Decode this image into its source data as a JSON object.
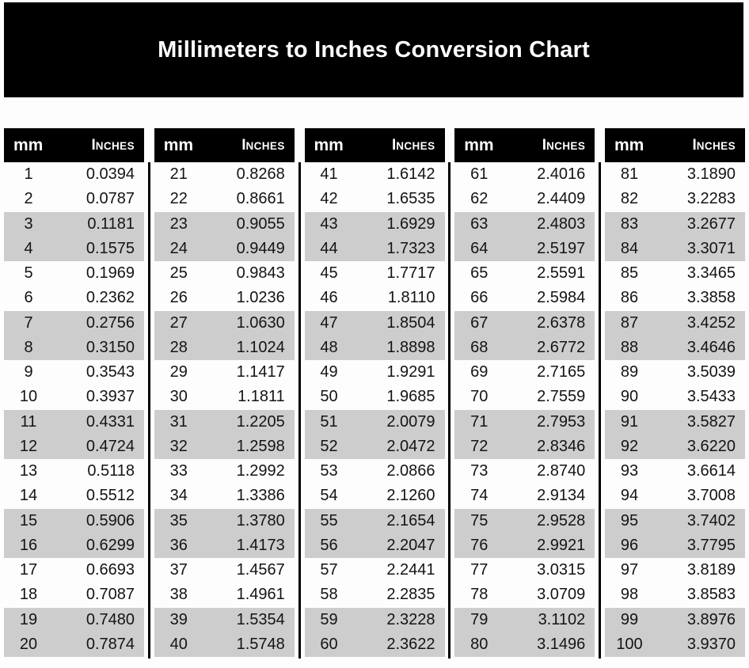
{
  "banner": {
    "title": "Millimeters to Inches Conversion Chart"
  },
  "table_header": {
    "mm_label": "mm",
    "inches_label": "Inches"
  },
  "colors": {
    "banner_bg": "#000000",
    "header_bg": "#000000",
    "header_text": "#ffffff",
    "stripe": "#cdcdcd",
    "text": "#141414",
    "page_bg": "#fdfdfd"
  },
  "chart_data": {
    "type": "table",
    "title": "Millimeters to Inches Conversion Chart",
    "columns": [
      "mm",
      "Inches"
    ],
    "stripe_pattern": "rows shaded gray in alternating pairs (rows 3-4, 7-8, 11-12, 15-16, 19-20 of each column)",
    "groups": [
      {
        "rows": [
          [
            1,
            "0.0394"
          ],
          [
            2,
            "0.0787"
          ],
          [
            3,
            "0.1181"
          ],
          [
            4,
            "0.1575"
          ],
          [
            5,
            "0.1969"
          ],
          [
            6,
            "0.2362"
          ],
          [
            7,
            "0.2756"
          ],
          [
            8,
            "0.3150"
          ],
          [
            9,
            "0.3543"
          ],
          [
            10,
            "0.3937"
          ],
          [
            11,
            "0.4331"
          ],
          [
            12,
            "0.4724"
          ],
          [
            13,
            "0.5118"
          ],
          [
            14,
            "0.5512"
          ],
          [
            15,
            "0.5906"
          ],
          [
            16,
            "0.6299"
          ],
          [
            17,
            "0.6693"
          ],
          [
            18,
            "0.7087"
          ],
          [
            19,
            "0.7480"
          ],
          [
            20,
            "0.7874"
          ]
        ]
      },
      {
        "rows": [
          [
            21,
            "0.8268"
          ],
          [
            22,
            "0.8661"
          ],
          [
            23,
            "0.9055"
          ],
          [
            24,
            "0.9449"
          ],
          [
            25,
            "0.9843"
          ],
          [
            26,
            "1.0236"
          ],
          [
            27,
            "1.0630"
          ],
          [
            28,
            "1.1024"
          ],
          [
            29,
            "1.1417"
          ],
          [
            30,
            "1.1811"
          ],
          [
            31,
            "1.2205"
          ],
          [
            32,
            "1.2598"
          ],
          [
            33,
            "1.2992"
          ],
          [
            34,
            "1.3386"
          ],
          [
            35,
            "1.3780"
          ],
          [
            36,
            "1.4173"
          ],
          [
            37,
            "1.4567"
          ],
          [
            38,
            "1.4961"
          ],
          [
            39,
            "1.5354"
          ],
          [
            40,
            "1.5748"
          ]
        ]
      },
      {
        "rows": [
          [
            41,
            "1.6142"
          ],
          [
            42,
            "1.6535"
          ],
          [
            43,
            "1.6929"
          ],
          [
            44,
            "1.7323"
          ],
          [
            45,
            "1.7717"
          ],
          [
            46,
            "1.8110"
          ],
          [
            47,
            "1.8504"
          ],
          [
            48,
            "1.8898"
          ],
          [
            49,
            "1.9291"
          ],
          [
            50,
            "1.9685"
          ],
          [
            51,
            "2.0079"
          ],
          [
            52,
            "2.0472"
          ],
          [
            53,
            "2.0866"
          ],
          [
            54,
            "2.1260"
          ],
          [
            55,
            "2.1654"
          ],
          [
            56,
            "2.2047"
          ],
          [
            57,
            "2.2441"
          ],
          [
            58,
            "2.2835"
          ],
          [
            59,
            "2.3228"
          ],
          [
            60,
            "2.3622"
          ]
        ]
      },
      {
        "rows": [
          [
            61,
            "2.4016"
          ],
          [
            62,
            "2.4409"
          ],
          [
            63,
            "2.4803"
          ],
          [
            64,
            "2.5197"
          ],
          [
            65,
            "2.5591"
          ],
          [
            66,
            "2.5984"
          ],
          [
            67,
            "2.6378"
          ],
          [
            68,
            "2.6772"
          ],
          [
            69,
            "2.7165"
          ],
          [
            70,
            "2.7559"
          ],
          [
            71,
            "2.7953"
          ],
          [
            72,
            "2.8346"
          ],
          [
            73,
            "2.8740"
          ],
          [
            74,
            "2.9134"
          ],
          [
            75,
            "2.9528"
          ],
          [
            76,
            "2.9921"
          ],
          [
            77,
            "3.0315"
          ],
          [
            78,
            "3.0709"
          ],
          [
            79,
            "3.1102"
          ],
          [
            80,
            "3.1496"
          ]
        ]
      },
      {
        "rows": [
          [
            81,
            "3.1890"
          ],
          [
            82,
            "3.2283"
          ],
          [
            83,
            "3.2677"
          ],
          [
            84,
            "3.3071"
          ],
          [
            85,
            "3.3465"
          ],
          [
            86,
            "3.3858"
          ],
          [
            87,
            "3.4252"
          ],
          [
            88,
            "3.4646"
          ],
          [
            89,
            "3.5039"
          ],
          [
            90,
            "3.5433"
          ],
          [
            91,
            "3.5827"
          ],
          [
            92,
            "3.6220"
          ],
          [
            93,
            "3.6614"
          ],
          [
            94,
            "3.7008"
          ],
          [
            95,
            "3.7402"
          ],
          [
            96,
            "3.7795"
          ],
          [
            97,
            "3.8189"
          ],
          [
            98,
            "3.8583"
          ],
          [
            99,
            "3.8976"
          ],
          [
            100,
            "3.9370"
          ]
        ]
      }
    ]
  }
}
